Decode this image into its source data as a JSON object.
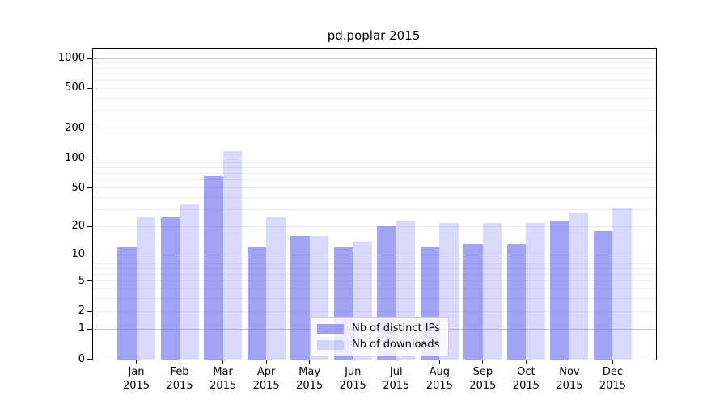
{
  "chart_data": {
    "type": "bar",
    "title": "pd.poplar 2015",
    "categories": [
      {
        "label": "Jan",
        "sub": "2015"
      },
      {
        "label": "Feb",
        "sub": "2015"
      },
      {
        "label": "Mar",
        "sub": "2015"
      },
      {
        "label": "Apr",
        "sub": "2015"
      },
      {
        "label": "May",
        "sub": "2015"
      },
      {
        "label": "Jun",
        "sub": "2015"
      },
      {
        "label": "Jul",
        "sub": "2015"
      },
      {
        "label": "Aug",
        "sub": "2015"
      },
      {
        "label": "Sep",
        "sub": "2015"
      },
      {
        "label": "Oct",
        "sub": "2015"
      },
      {
        "label": "Nov",
        "sub": "2015"
      },
      {
        "label": "Dec",
        "sub": "2015"
      }
    ],
    "series": [
      {
        "name": "Nb of distinct IPs",
        "color": "rgba(102,102,238,0.6)",
        "values": [
          12,
          25,
          66,
          12,
          16,
          12,
          20,
          12,
          13,
          13,
          23,
          18
        ]
      },
      {
        "name": "Nb of downloads",
        "color": "rgba(102,102,238,0.25)",
        "values": [
          25,
          34,
          118,
          25,
          16,
          14,
          23,
          22,
          22,
          22,
          28,
          31
        ]
      }
    ],
    "xlabel": "",
    "ylabel": "",
    "yscale": "log1p",
    "ylim": [
      0,
      1230
    ],
    "yticks": [
      0,
      1,
      2,
      5,
      10,
      20,
      50,
      100,
      200,
      500,
      1000
    ],
    "grid": {
      "major": [
        1,
        10,
        100,
        1000
      ],
      "minor": [
        2,
        3,
        4,
        5,
        6,
        7,
        8,
        9,
        20,
        30,
        40,
        50,
        60,
        70,
        80,
        90,
        200,
        300,
        400,
        500,
        600,
        700,
        800,
        900
      ],
      "major_color": "#c6c6c6",
      "minor_color": "#ececec"
    },
    "legend_position": "lower center"
  }
}
